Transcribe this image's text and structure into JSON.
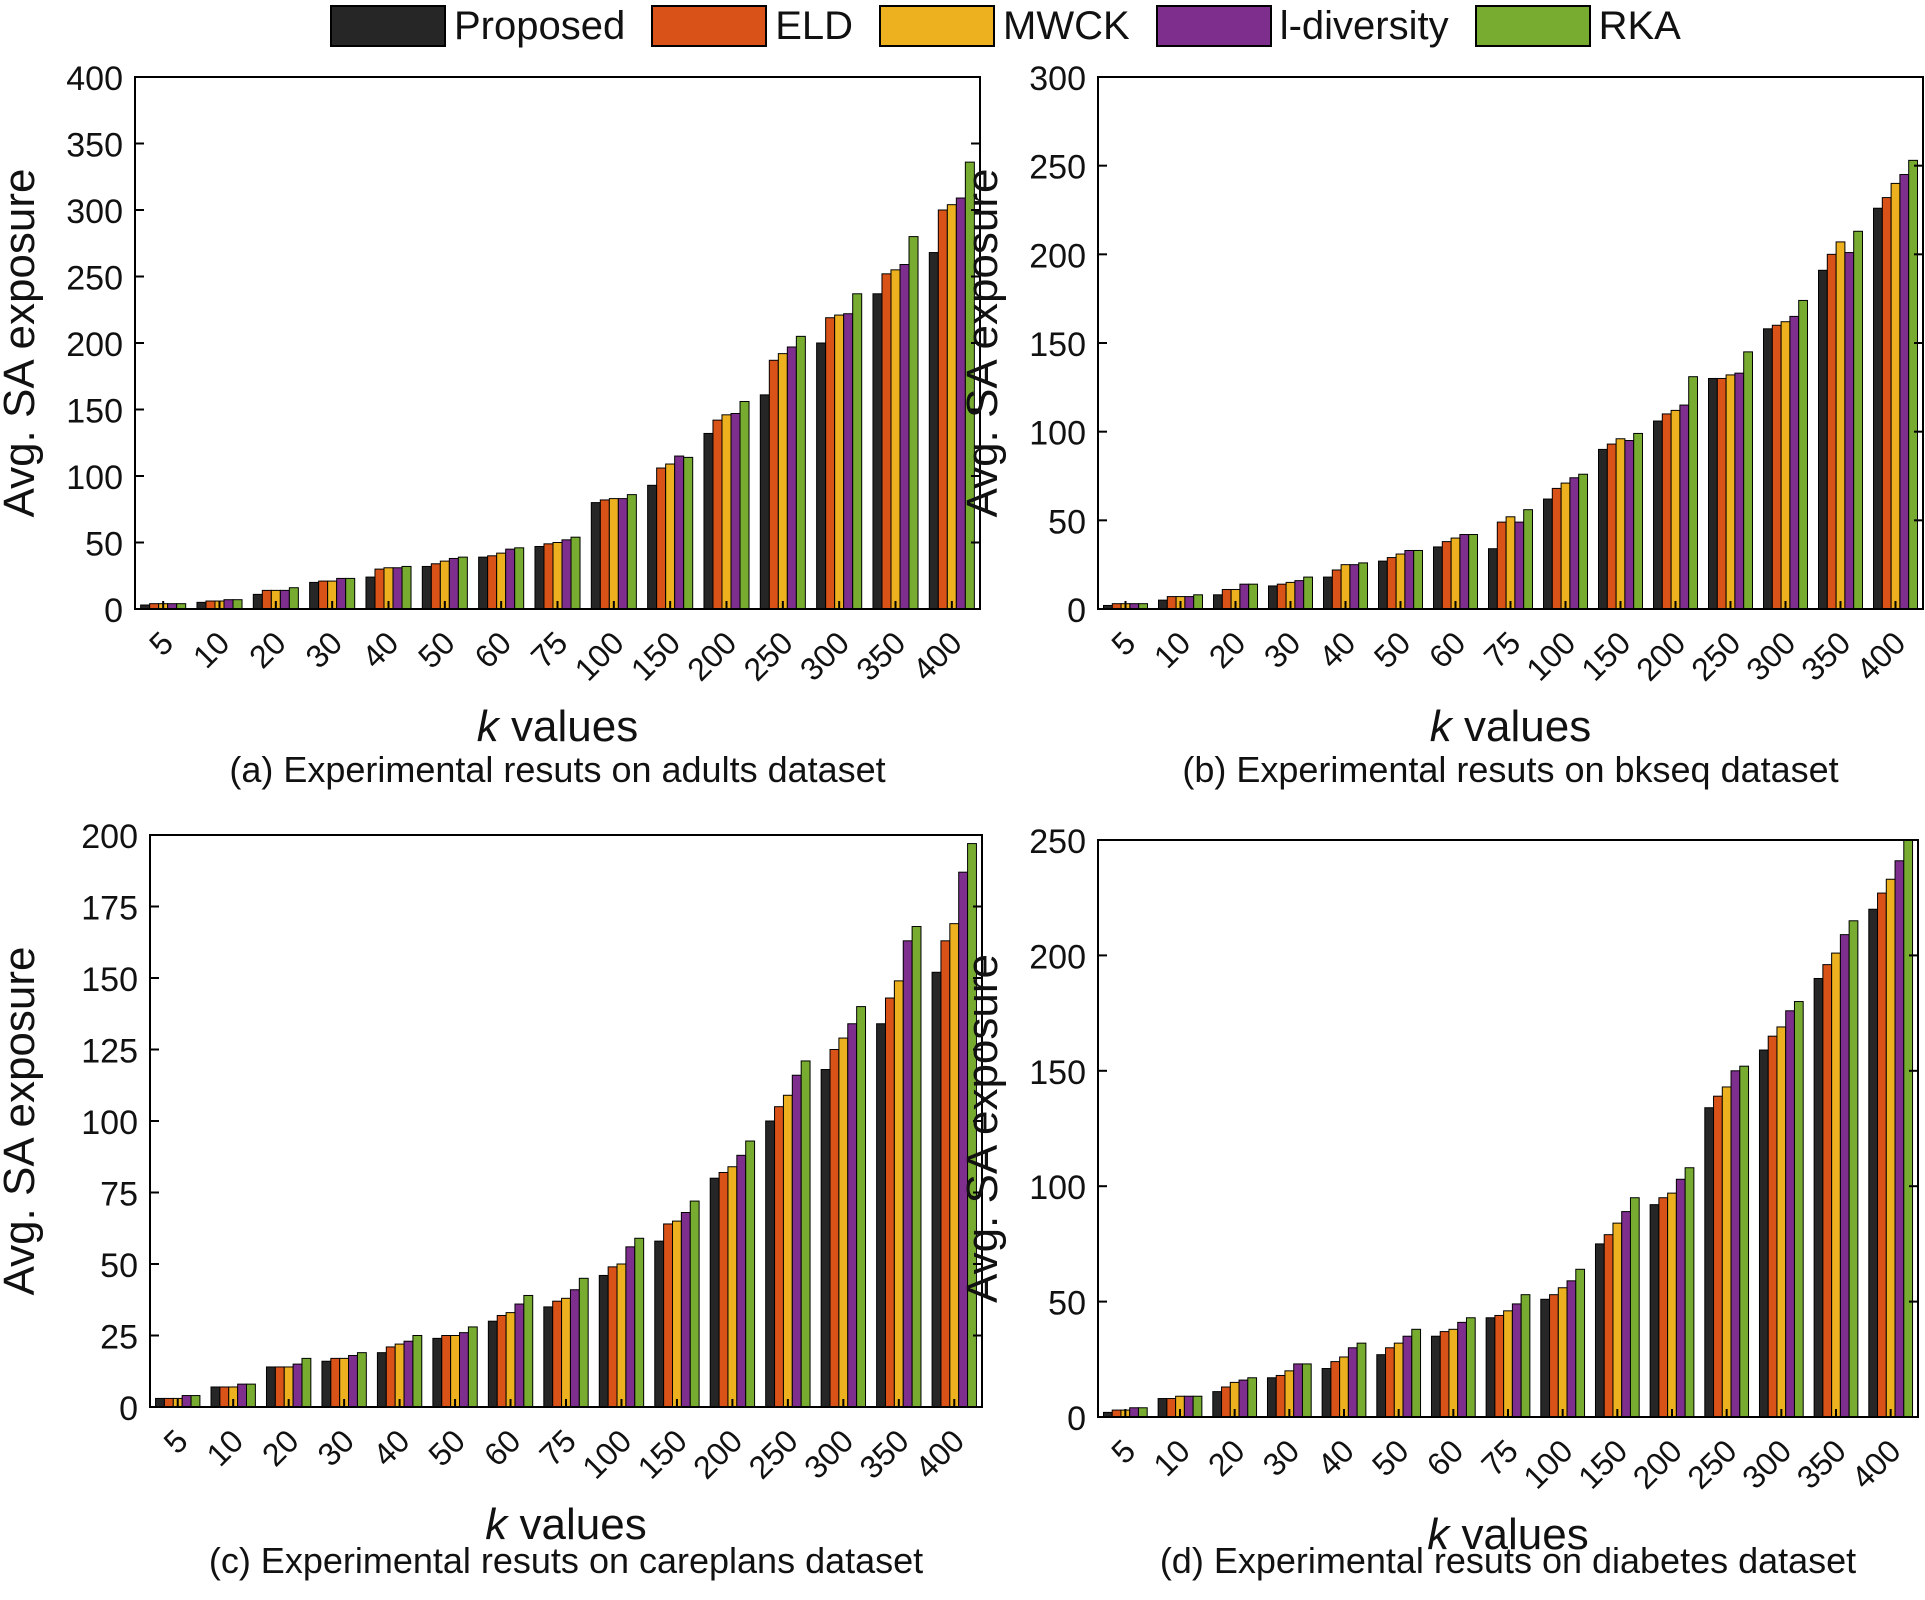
{
  "legend": {
    "items": [
      {
        "label": "Proposed",
        "color": "#262626"
      },
      {
        "label": "ELD",
        "color": "#d95319"
      },
      {
        "label": "MWCK",
        "color": "#edb120"
      },
      {
        "label": "l-diversity",
        "color": "#7e2f8e"
      },
      {
        "label": "RKA",
        "color": "#77ac30"
      }
    ]
  },
  "chart_data": [
    {
      "type": "bar",
      "caption": "(a) Experimental resuts on adults dataset",
      "xlabel_italic": "k",
      "xlabel_rest": " values",
      "ylabel": "Avg. SA exposure",
      "ylim": [
        0,
        400
      ],
      "yticks": [
        0,
        50,
        100,
        150,
        200,
        250,
        300,
        350,
        400
      ],
      "categories": [
        "5",
        "10",
        "20",
        "30",
        "40",
        "50",
        "60",
        "75",
        "100",
        "150",
        "200",
        "250",
        "300",
        "350",
        "400"
      ],
      "series": [
        {
          "name": "Proposed",
          "values": [
            3,
            5,
            11,
            20,
            24,
            32,
            39,
            47,
            80,
            93,
            132,
            161,
            200,
            237,
            268
          ]
        },
        {
          "name": "ELD",
          "values": [
            4,
            6,
            14,
            21,
            30,
            34,
            40,
            49,
            82,
            106,
            142,
            187,
            219,
            252,
            300
          ]
        },
        {
          "name": "MWCK",
          "values": [
            4,
            6,
            14,
            21,
            31,
            36,
            42,
            50,
            83,
            109,
            146,
            192,
            221,
            255,
            304
          ]
        },
        {
          "name": "l-diversity",
          "values": [
            4,
            7,
            14,
            23,
            31,
            38,
            45,
            52,
            83,
            115,
            147,
            197,
            222,
            259,
            309
          ]
        },
        {
          "name": "RKA",
          "values": [
            4,
            7,
            16,
            23,
            32,
            39,
            46,
            54,
            86,
            114,
            156,
            205,
            237,
            280,
            336
          ]
        }
      ]
    },
    {
      "type": "bar",
      "caption": "(b) Experimental resuts on bkseq dataset",
      "xlabel_italic": "k",
      "xlabel_rest": " values",
      "ylabel": "Avg. SA exposure",
      "ylim": [
        0,
        300
      ],
      "yticks": [
        0,
        50,
        100,
        150,
        200,
        250,
        300
      ],
      "categories": [
        "5",
        "10",
        "20",
        "30",
        "40",
        "50",
        "60",
        "75",
        "100",
        "150",
        "200",
        "250",
        "300",
        "350",
        "400"
      ],
      "series": [
        {
          "name": "Proposed",
          "values": [
            2,
            5,
            8,
            13,
            18,
            27,
            35,
            34,
            62,
            90,
            106,
            130,
            158,
            191,
            226
          ]
        },
        {
          "name": "ELD",
          "values": [
            3,
            7,
            11,
            14,
            22,
            29,
            38,
            49,
            68,
            93,
            110,
            130,
            160,
            200,
            232
          ]
        },
        {
          "name": "MWCK",
          "values": [
            3,
            7,
            11,
            15,
            25,
            31,
            40,
            52,
            71,
            96,
            112,
            132,
            162,
            207,
            240
          ]
        },
        {
          "name": "l-diversity",
          "values": [
            3,
            7,
            14,
            16,
            25,
            33,
            42,
            49,
            74,
            95,
            115,
            133,
            165,
            201,
            245
          ]
        },
        {
          "name": "RKA",
          "values": [
            3,
            8,
            14,
            18,
            26,
            33,
            42,
            56,
            76,
            99,
            131,
            145,
            174,
            213,
            253
          ]
        }
      ]
    },
    {
      "type": "bar",
      "caption": "(c) Experimental resuts on careplans dataset",
      "xlabel_italic": "k",
      "xlabel_rest": " values",
      "ylabel": "Avg. SA exposure",
      "ylim": [
        0,
        200
      ],
      "yticks": [
        0,
        25,
        50,
        75,
        100,
        125,
        150,
        175,
        200
      ],
      "categories": [
        "5",
        "10",
        "20",
        "30",
        "40",
        "50",
        "60",
        "75",
        "100",
        "150",
        "200",
        "250",
        "300",
        "350",
        "400"
      ],
      "series": [
        {
          "name": "Proposed",
          "values": [
            3,
            7,
            14,
            16,
            19,
            24,
            30,
            35,
            46,
            58,
            80,
            100,
            118,
            134,
            152
          ]
        },
        {
          "name": "ELD",
          "values": [
            3,
            7,
            14,
            17,
            21,
            25,
            32,
            37,
            49,
            64,
            82,
            105,
            125,
            143,
            163
          ]
        },
        {
          "name": "MWCK",
          "values": [
            3,
            7,
            14,
            17,
            22,
            25,
            33,
            38,
            50,
            65,
            84,
            109,
            129,
            149,
            169
          ]
        },
        {
          "name": "l-diversity",
          "values": [
            4,
            8,
            15,
            18,
            23,
            26,
            36,
            41,
            56,
            68,
            88,
            116,
            134,
            163,
            187
          ]
        },
        {
          "name": "RKA",
          "values": [
            4,
            8,
            17,
            19,
            25,
            28,
            39,
            45,
            59,
            72,
            93,
            121,
            140,
            168,
            197
          ]
        }
      ]
    },
    {
      "type": "bar",
      "caption": "(d) Experimental resuts on diabetes dataset",
      "xlabel_italic": "k",
      "xlabel_rest": " values",
      "ylabel": "Avg. SA exposure",
      "ylim": [
        0,
        250
      ],
      "yticks": [
        0,
        50,
        100,
        150,
        200,
        250
      ],
      "categories": [
        "5",
        "10",
        "20",
        "30",
        "40",
        "50",
        "60",
        "75",
        "100",
        "150",
        "200",
        "250",
        "300",
        "350",
        "400"
      ],
      "series": [
        {
          "name": "Proposed",
          "values": [
            2,
            8,
            11,
            17,
            21,
            27,
            35,
            43,
            51,
            75,
            92,
            134,
            159,
            190,
            220
          ]
        },
        {
          "name": "ELD",
          "values": [
            3,
            8,
            13,
            18,
            24,
            30,
            37,
            44,
            53,
            79,
            95,
            139,
            165,
            196,
            227
          ]
        },
        {
          "name": "MWCK",
          "values": [
            3,
            9,
            15,
            20,
            26,
            32,
            38,
            46,
            56,
            84,
            97,
            143,
            169,
            201,
            233
          ]
        },
        {
          "name": "l-diversity",
          "values": [
            4,
            9,
            16,
            23,
            30,
            35,
            41,
            49,
            59,
            89,
            103,
            150,
            176,
            209,
            241
          ]
        },
        {
          "name": "RKA",
          "values": [
            4,
            9,
            17,
            23,
            32,
            38,
            43,
            53,
            64,
            95,
            108,
            152,
            180,
            215,
            250
          ]
        }
      ]
    }
  ]
}
